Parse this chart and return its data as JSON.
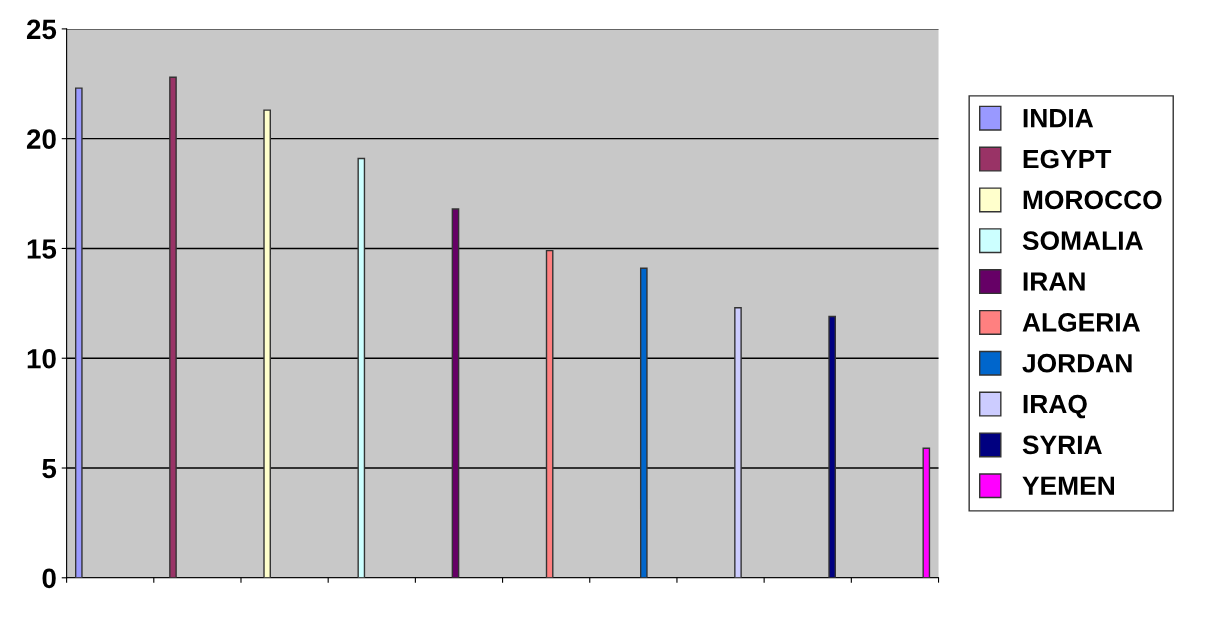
{
  "chart_data": {
    "type": "bar",
    "categories": [
      null,
      null,
      null,
      null,
      null,
      null,
      null,
      null,
      null,
      null
    ],
    "series": [
      {
        "name": "INDIA",
        "color": "#9999ff",
        "values": [
          22.3,
          null,
          null,
          null,
          null,
          null,
          null,
          null,
          null,
          null
        ]
      },
      {
        "name": "EGYPT",
        "color": "#993366",
        "values": [
          null,
          22.8,
          null,
          null,
          null,
          null,
          null,
          null,
          null,
          null
        ]
      },
      {
        "name": "MOROCCO",
        "color": "#ffffcc",
        "values": [
          null,
          null,
          21.3,
          null,
          null,
          null,
          null,
          null,
          null,
          null
        ]
      },
      {
        "name": "SOMALIA",
        "color": "#ccffff",
        "values": [
          null,
          null,
          null,
          19.1,
          null,
          null,
          null,
          null,
          null,
          null
        ]
      },
      {
        "name": "IRAN",
        "color": "#660066",
        "values": [
          null,
          null,
          null,
          null,
          16.8,
          null,
          null,
          null,
          null,
          null
        ]
      },
      {
        "name": "ALGERIA",
        "color": "#ff8080",
        "values": [
          null,
          null,
          null,
          null,
          null,
          14.9,
          null,
          null,
          null,
          null
        ]
      },
      {
        "name": "JORDAN",
        "color": "#0066cc",
        "values": [
          null,
          null,
          null,
          null,
          null,
          null,
          14.1,
          null,
          null,
          null
        ]
      },
      {
        "name": "IRAQ",
        "color": "#ccccff",
        "values": [
          null,
          null,
          null,
          null,
          null,
          null,
          null,
          12.3,
          null,
          null
        ]
      },
      {
        "name": "SYRIA",
        "color": "#000080",
        "values": [
          null,
          null,
          null,
          null,
          null,
          null,
          null,
          null,
          11.9,
          null
        ]
      },
      {
        "name": "YEMEN",
        "color": "#ff00ff",
        "values": [
          null,
          null,
          null,
          null,
          null,
          null,
          null,
          null,
          null,
          5.9
        ]
      }
    ],
    "ylim": [
      0,
      25
    ],
    "yticks": [
      0,
      5,
      10,
      15,
      20,
      25
    ],
    "grid": "y",
    "legend": "right"
  }
}
